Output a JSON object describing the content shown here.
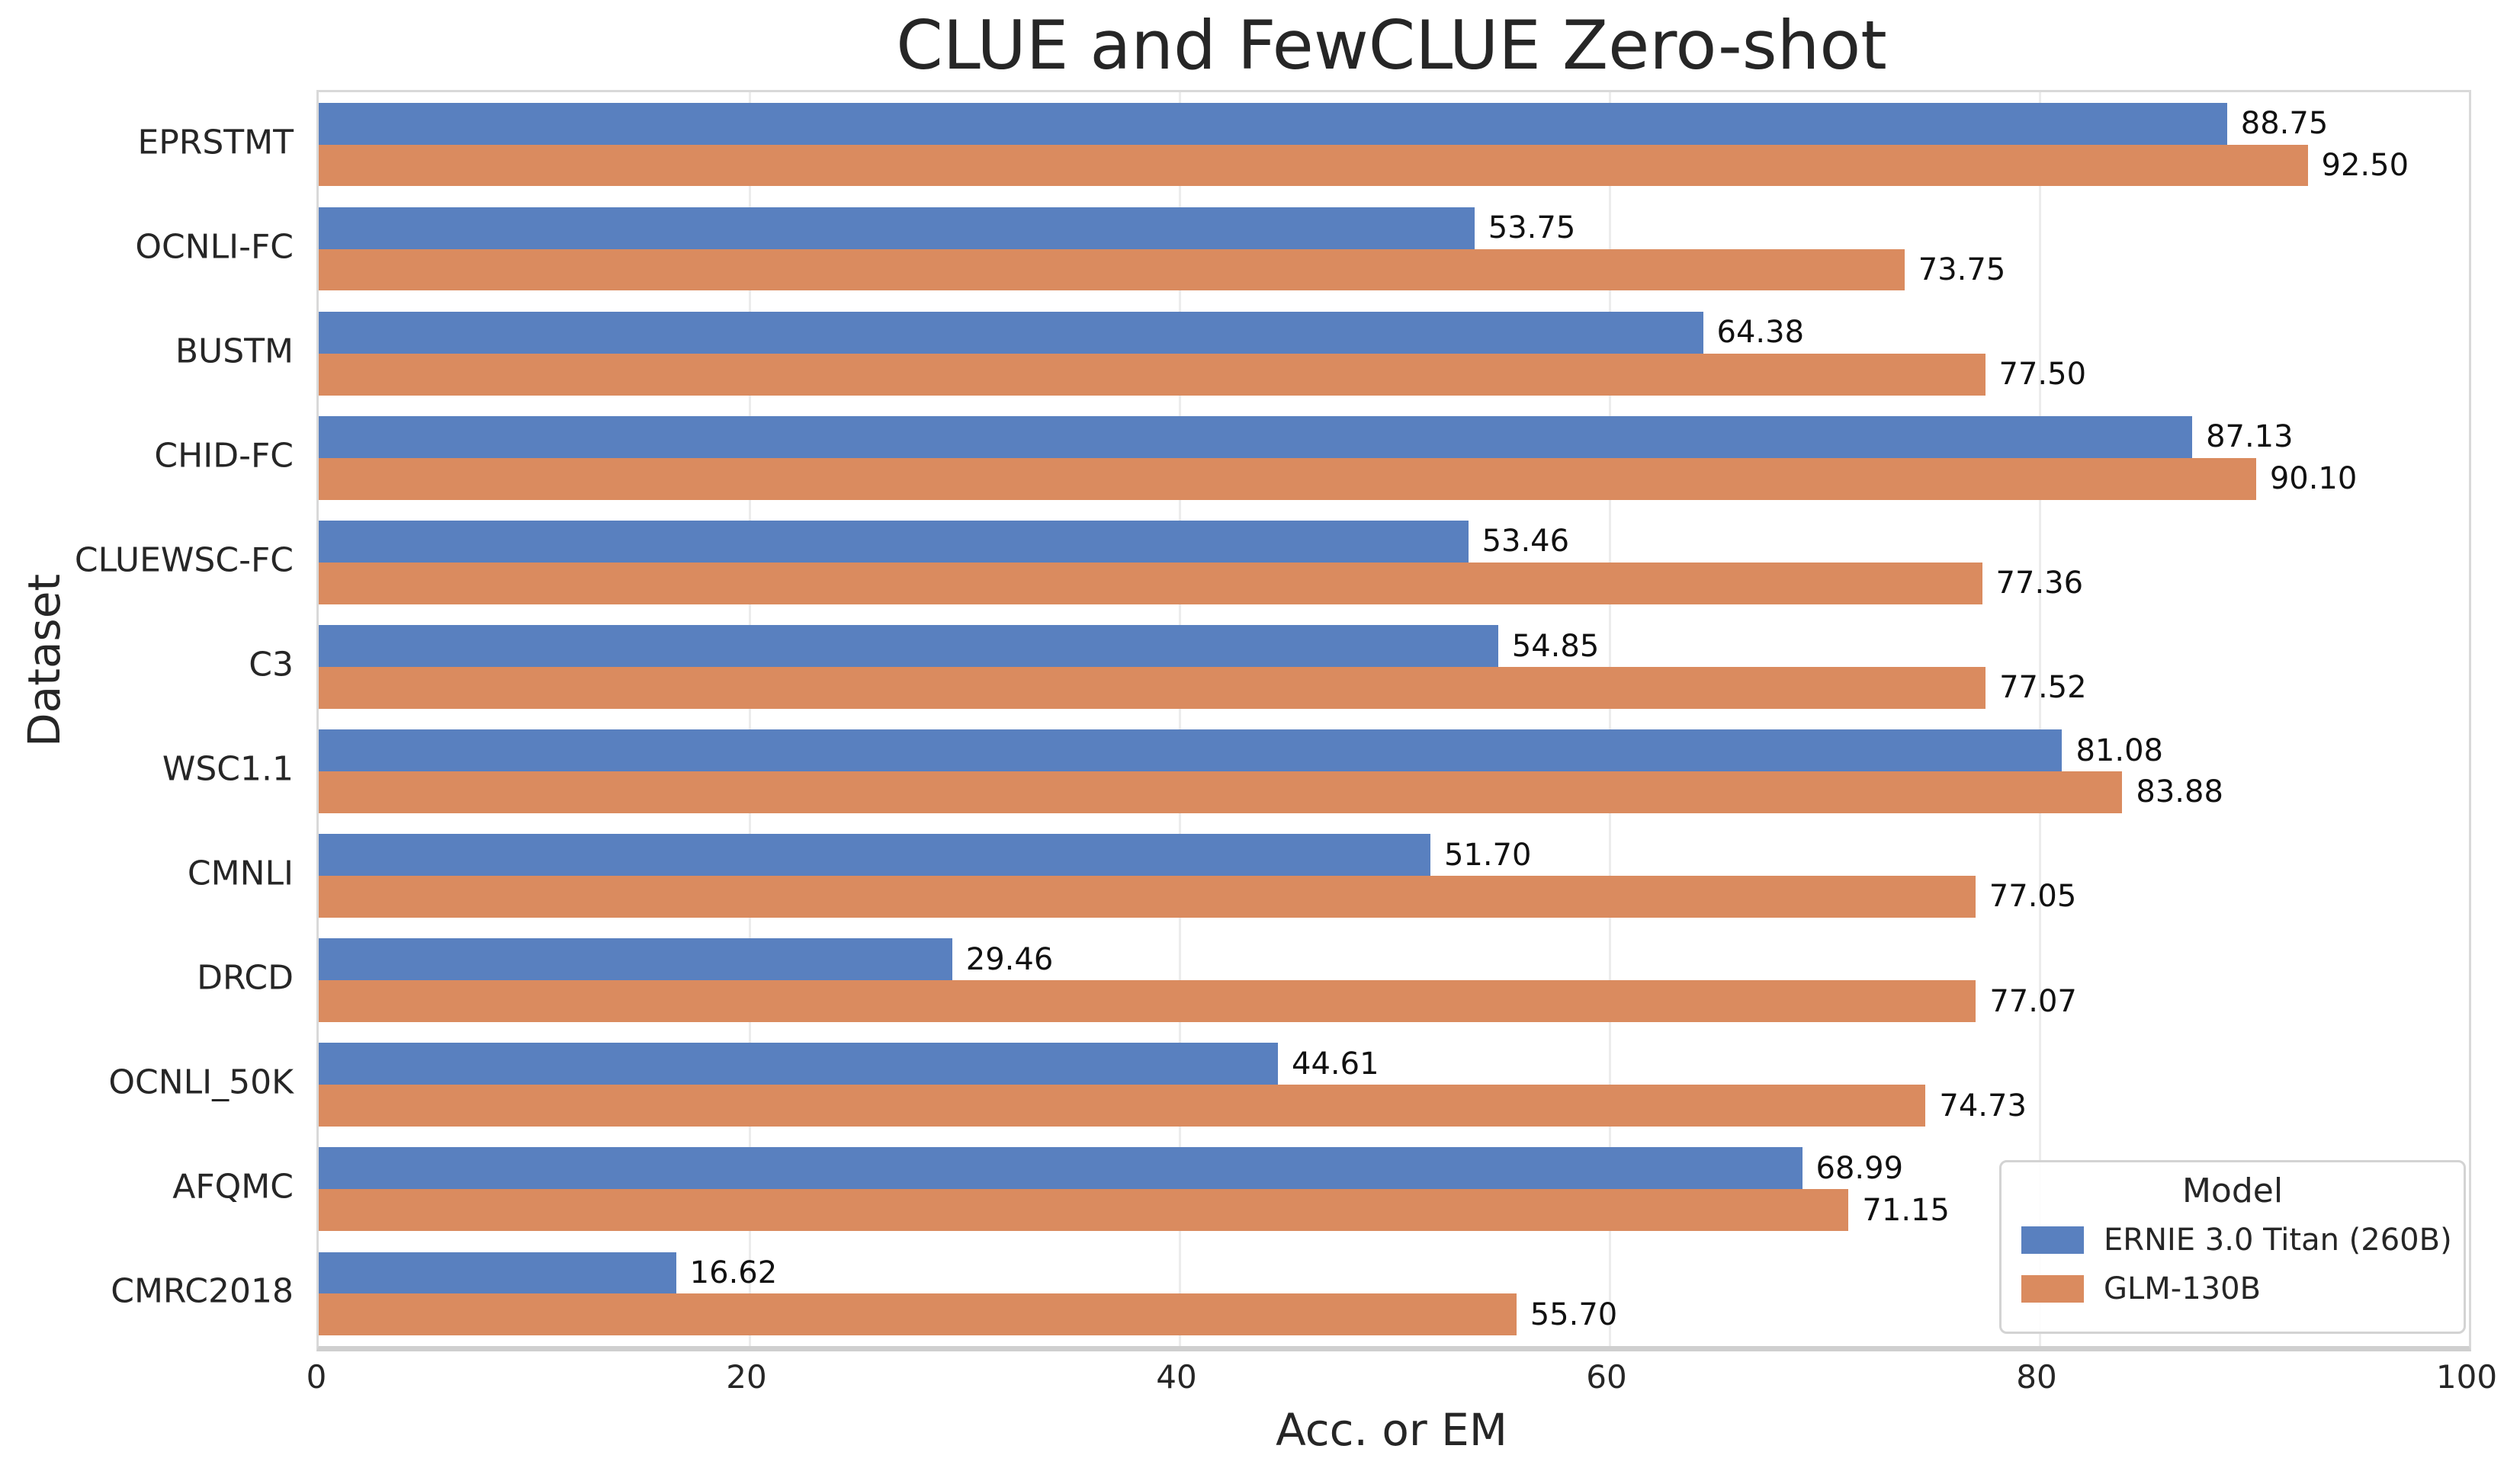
{
  "chart_data": {
    "type": "bar",
    "orientation": "horizontal",
    "title": "CLUE and FewCLUE Zero-shot",
    "xlabel": "Acc. or EM",
    "ylabel": "Dataset",
    "xlim": [
      0,
      100
    ],
    "xticks": [
      0,
      20,
      40,
      60,
      80,
      100
    ],
    "grid": "vertical light gridlines at ticks",
    "background": "#ffffff",
    "text_color": "#262626",
    "categories": [
      "EPRSTMT",
      "OCNLI-FC",
      "BUSTM",
      "CHID-FC",
      "CLUEWSC-FC",
      "C3",
      "WSC1.1",
      "CMNLI",
      "DRCD",
      "OCNLI_50K",
      "AFQMC",
      "CMRC2018"
    ],
    "series": [
      {
        "name": "ERNIE 3.0 Titan (260B)",
        "color": "#5980bf",
        "values": [
          88.75,
          53.75,
          64.38,
          87.13,
          53.46,
          54.85,
          81.08,
          51.7,
          29.46,
          44.61,
          68.99,
          16.62
        ]
      },
      {
        "name": "GLM-130B",
        "color": "#da8b5f",
        "values": [
          92.5,
          73.75,
          77.5,
          90.1,
          77.36,
          77.52,
          83.88,
          77.05,
          77.07,
          74.73,
          71.15,
          55.7
        ]
      }
    ],
    "value_labels": "each bar labeled at its end with value to 2 decimal places",
    "legend": {
      "title": "Model",
      "position": "lower right"
    }
  }
}
